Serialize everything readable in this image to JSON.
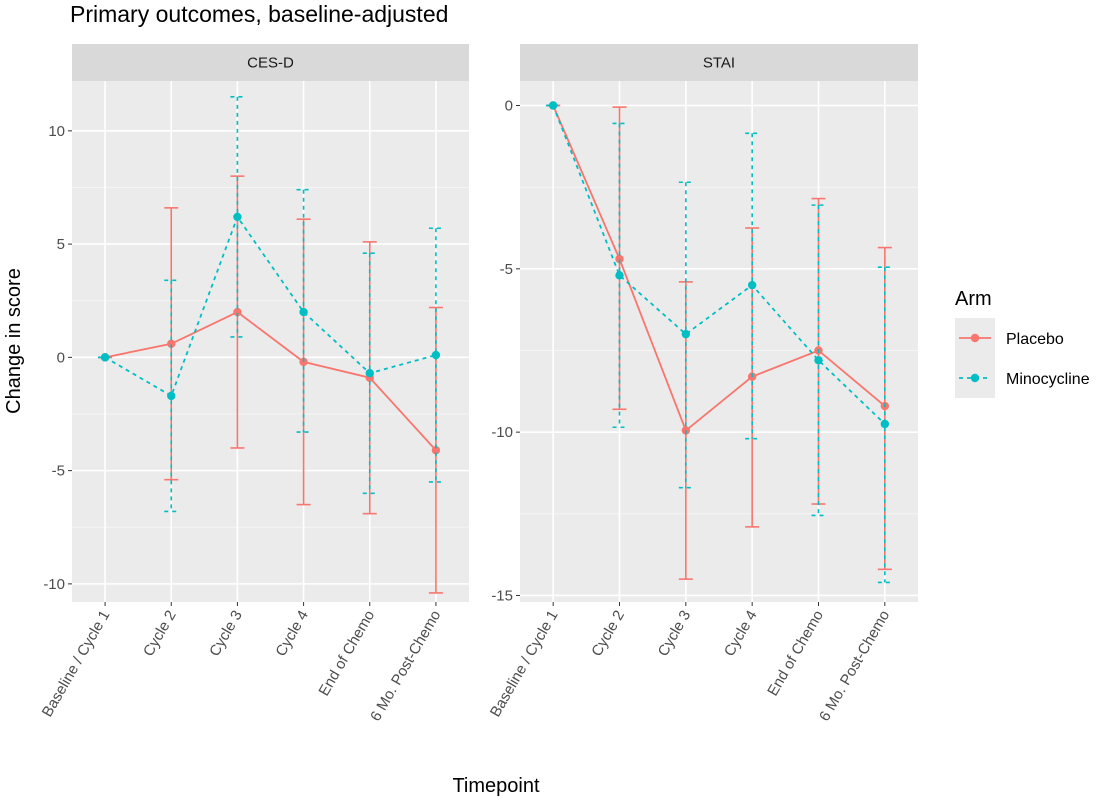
{
  "chart_data": {
    "type": "line",
    "title": "Primary outcomes, baseline-adjusted",
    "xlabel": "Timepoint",
    "ylabel": "Change in score",
    "categories": [
      "Baseline / Cycle 1",
      "Cycle 2",
      "Cycle 3",
      "Cycle 4",
      "End of Chemo",
      "6 Mo. Post-Chemo"
    ],
    "legend": {
      "title": "Arm",
      "placement": "right",
      "entries": [
        {
          "name": "Placebo",
          "color": "#F8766D",
          "linestyle": "solid"
        },
        {
          "name": "Minocycline",
          "color": "#00BFC4",
          "linestyle": "dotted"
        }
      ]
    },
    "grid": true,
    "error_bars": true,
    "panels": [
      {
        "strip": "CES-D",
        "ylim": [
          -10.8,
          12.2
        ],
        "yticks": [
          -10,
          -5,
          0,
          5,
          10
        ],
        "yticklabels": [
          "-10",
          "-5",
          "0",
          "5",
          "10"
        ],
        "series": [
          {
            "name": "Placebo",
            "values": [
              0,
              0.6,
              2.0,
              -0.2,
              -0.9,
              -4.1
            ],
            "lower": [
              0,
              -5.4,
              -4.0,
              -6.5,
              -6.9,
              -10.4
            ],
            "upper": [
              0,
              6.6,
              8.0,
              6.1,
              5.1,
              2.2
            ]
          },
          {
            "name": "Minocycline",
            "values": [
              0,
              -1.7,
              6.2,
              2.0,
              -0.7,
              0.1
            ],
            "lower": [
              0,
              -6.8,
              0.9,
              -3.3,
              -6.0,
              -5.5
            ],
            "upper": [
              0,
              3.4,
              11.5,
              7.4,
              4.6,
              5.7
            ]
          }
        ]
      },
      {
        "strip": "STAI",
        "ylim": [
          -15.2,
          0.75
        ],
        "yticks": [
          -15,
          -10,
          -5,
          0
        ],
        "yticklabels": [
          "-15",
          "-10",
          "-5",
          "0"
        ],
        "series": [
          {
            "name": "Placebo",
            "values": [
              0,
              -4.7,
              -9.95,
              -8.3,
              -7.5,
              -9.2
            ],
            "lower": [
              0,
              -9.3,
              -14.5,
              -12.9,
              -12.2,
              -14.2
            ],
            "upper": [
              0,
              -0.05,
              -5.4,
              -3.75,
              -2.85,
              -4.35
            ]
          },
          {
            "name": "Minocycline",
            "values": [
              0,
              -5.2,
              -7.0,
              -5.5,
              -7.8,
              -9.75
            ],
            "lower": [
              0,
              -9.85,
              -11.7,
              -10.2,
              -12.55,
              -14.6
            ],
            "upper": [
              0,
              -0.55,
              -2.35,
              -0.85,
              -3.05,
              -4.95
            ]
          }
        ]
      }
    ]
  }
}
